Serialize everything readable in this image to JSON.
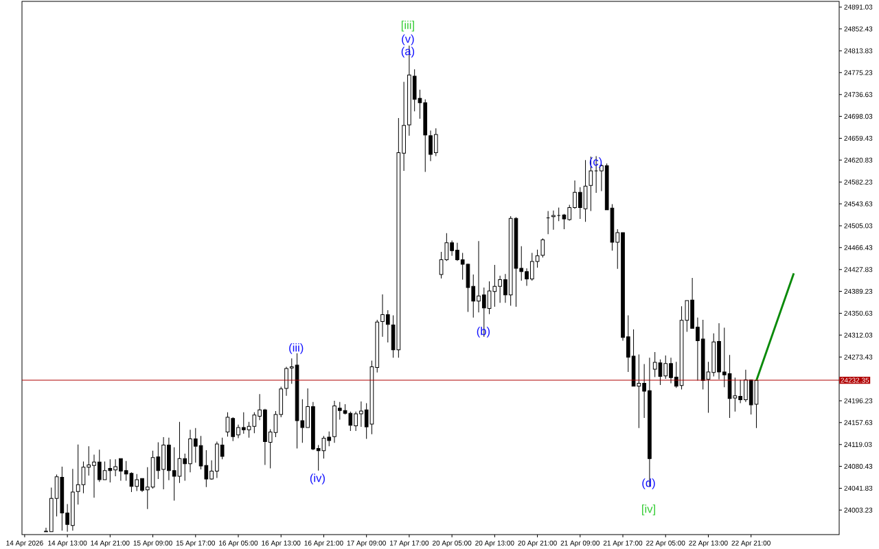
{
  "chart_data": {
    "type": "candlestick",
    "categories": [
      "14 Apr 2026",
      null,
      null,
      null,
      null,
      null,
      null,
      null,
      "14 Apr 13:00",
      null,
      null,
      null,
      null,
      null,
      null,
      null,
      "14 Apr 21:00",
      null,
      null,
      null,
      null,
      null,
      null,
      null,
      "15 Apr 09:00",
      null,
      null,
      null,
      null,
      null,
      null,
      null,
      "15 Apr 17:00",
      null,
      null,
      null,
      null,
      null,
      null,
      null,
      "16 Apr 05:00",
      null,
      null,
      null,
      null,
      null,
      null,
      null,
      "16 Apr 13:00",
      null,
      null,
      null,
      null,
      null,
      null,
      null,
      "16 Apr 21:00",
      null,
      null,
      null,
      null,
      null,
      null,
      null,
      "17 Apr 09:00",
      null,
      null,
      null,
      null,
      null,
      null,
      null,
      "17 Apr 17:00",
      null,
      null,
      null,
      null,
      null,
      null,
      null,
      "20 Apr 05:00",
      null,
      null,
      null,
      null,
      null,
      null,
      null,
      "20 Apr 13:00",
      null,
      null,
      null,
      null,
      null,
      null,
      null,
      "20 Apr 21:00",
      null,
      null,
      null,
      null,
      null,
      null,
      null,
      "21 Apr 09:00",
      null,
      null,
      null,
      null,
      null,
      null,
      null,
      "21 Apr 17:00",
      null,
      null,
      null,
      null,
      null,
      null,
      null,
      "22 Apr 05:00",
      null,
      null,
      null,
      null,
      null,
      null,
      null,
      "22 Apr 13:00",
      null,
      null,
      null,
      null,
      null,
      null,
      null,
      "22 Apr 21:00",
      null,
      null,
      null,
      null,
      null,
      null,
      null,
      null,
      null,
      null,
      null,
      null,
      null,
      null,
      null,
      null
    ],
    "ohlc": [
      null,
      null,
      null,
      null,
      [
        23965,
        23972,
        23965,
        23966
      ],
      [
        23965,
        24043,
        23965,
        24024
      ],
      [
        24024,
        24066,
        23992,
        24062
      ],
      [
        24061,
        24080,
        23967,
        23998
      ],
      [
        23998,
        24014,
        23965,
        23978
      ],
      [
        23976,
        24076,
        23967,
        24035
      ],
      [
        24036,
        24119,
        24013,
        24048
      ],
      [
        24048,
        24089,
        24033,
        24079
      ],
      [
        24079,
        24116,
        24064,
        24083
      ],
      [
        24082,
        24101,
        24025,
        24088
      ],
      [
        24088,
        24110,
        24053,
        24057
      ],
      [
        24057,
        24089,
        24057,
        24073
      ],
      [
        24077,
        24093,
        24052,
        24073
      ],
      [
        24074,
        24093,
        24063,
        24080
      ],
      [
        24094,
        24094,
        24055,
        24072
      ],
      [
        24073,
        24090,
        24055,
        24067
      ],
      [
        24068,
        24070,
        24035,
        24045
      ],
      [
        24045,
        24067,
        24037,
        24057
      ],
      [
        24059,
        24059,
        24035,
        24038
      ],
      [
        24039,
        24079,
        24005,
        24044
      ],
      [
        24044,
        24108,
        24041,
        24096
      ],
      [
        24097,
        24123,
        24058,
        24073
      ],
      [
        24075,
        24132,
        24040,
        24118
      ],
      [
        24118,
        24131,
        24056,
        24073
      ],
      [
        24073,
        24114,
        24020,
        24063
      ],
      [
        24063,
        24159,
        24051,
        24094
      ],
      [
        24094,
        24103,
        24055,
        24085
      ],
      [
        24085,
        24145,
        24070,
        24129
      ],
      [
        24129,
        24148,
        24087,
        24116
      ],
      [
        24117,
        24134,
        24075,
        24081
      ],
      [
        24082,
        24109,
        24044,
        24058
      ],
      [
        24058,
        24091,
        24057,
        24072
      ],
      [
        24072,
        24124,
        24060,
        24120
      ],
      [
        24118,
        24131,
        24093,
        24098
      ],
      [
        24141,
        24176,
        24133,
        24167
      ],
      [
        24165,
        24167,
        24125,
        24133
      ],
      [
        24136,
        24154,
        24130,
        24149
      ],
      [
        24149,
        24176,
        24138,
        24145
      ],
      [
        24145,
        24159,
        24131,
        24151
      ],
      [
        24151,
        24176,
        24139,
        24171
      ],
      [
        24169,
        24208,
        24162,
        24180
      ],
      [
        24180,
        24182,
        24083,
        24124
      ],
      [
        24123,
        24146,
        24077,
        24141
      ],
      [
        24140,
        24178,
        24132,
        24172
      ],
      [
        24172,
        24221,
        24167,
        24217
      ],
      [
        24218,
        24256,
        24205,
        24253
      ],
      [
        24254,
        24271,
        24226,
        24256
      ],
      [
        24259,
        24280,
        24112,
        24161
      ],
      [
        24161,
        24199,
        24122,
        24149
      ],
      [
        24149,
        24218,
        24149,
        24186
      ],
      [
        24186,
        24194,
        24109,
        24111
      ],
      [
        24112,
        24118,
        24073,
        24108
      ],
      [
        24108,
        24134,
        24094,
        24130
      ],
      [
        24132,
        24142,
        24116,
        24126
      ],
      [
        24133,
        24196,
        24122,
        24187
      ],
      [
        24183,
        24194,
        24163,
        24179
      ],
      [
        24179,
        24190,
        24172,
        24174
      ],
      [
        24174,
        24177,
        24143,
        24153
      ],
      [
        24152,
        24177,
        24143,
        24173
      ],
      [
        24173,
        24195,
        24150,
        24178
      ],
      [
        24180,
        24192,
        24129,
        24150
      ],
      [
        24155,
        24267,
        24137,
        24256
      ],
      [
        24255,
        24339,
        24246,
        24335
      ],
      [
        24336,
        24384,
        24309,
        24348
      ],
      [
        24348,
        24356,
        24299,
        24331
      ],
      [
        24330,
        24347,
        24272,
        24286
      ],
      [
        24286,
        24695,
        24272,
        24634
      ],
      [
        24633,
        24759,
        24602,
        24682
      ],
      [
        24683,
        24823,
        24664,
        24771
      ],
      [
        24769,
        24781,
        24707,
        24728
      ],
      [
        24730,
        24745,
        24694,
        24722
      ],
      [
        24722,
        24728,
        24600,
        24665
      ],
      [
        24664,
        24673,
        24619,
        24631
      ],
      [
        24634,
        24677,
        24628,
        24666
      ],
      [
        24419,
        24459,
        24412,
        24445
      ],
      [
        24445,
        24492,
        24443,
        24475
      ],
      [
        24475,
        24479,
        24452,
        24461
      ],
      [
        24462,
        24475,
        24443,
        24445
      ],
      [
        24445,
        24457,
        24410,
        24437
      ],
      [
        24437,
        24438,
        24353,
        24396
      ],
      [
        24398,
        24419,
        24343,
        24372
      ],
      [
        24372,
        24478,
        24352,
        24381
      ],
      [
        24383,
        24396,
        24309,
        24360
      ],
      [
        24359,
        24407,
        24349,
        24390
      ],
      [
        24389,
        24436,
        24362,
        24398
      ],
      [
        24398,
        24417,
        24369,
        24410
      ],
      [
        24410,
        24420,
        24369,
        24383
      ],
      [
        24383,
        24522,
        24364,
        24518
      ],
      [
        24518,
        24520,
        24362,
        24430
      ],
      [
        24430,
        24469,
        24408,
        24424
      ],
      [
        24424,
        24430,
        24399,
        24411
      ],
      [
        24411,
        24457,
        24408,
        24442
      ],
      [
        24442,
        24463,
        24431,
        24452
      ],
      [
        24453,
        24483,
        24449,
        24480
      ],
      [
        24519,
        24531,
        24490,
        24519
      ],
      [
        24521,
        24532,
        24498,
        24523
      ],
      [
        24523,
        24537,
        24513,
        24523
      ],
      [
        24524,
        24526,
        24499,
        24517
      ],
      [
        24516,
        24542,
        24514,
        24537
      ],
      [
        24537,
        24585,
        24535,
        24564
      ],
      [
        24564,
        24573,
        24517,
        24537
      ],
      [
        24535,
        24621,
        24512,
        24575
      ],
      [
        24576,
        24627,
        24531,
        24602
      ],
      [
        24602,
        24628,
        24563,
        24602
      ],
      [
        24602,
        24614,
        24566,
        24611
      ],
      [
        24611,
        24615,
        24533,
        24533
      ],
      [
        24536,
        24543,
        24461,
        24476
      ],
      [
        24476,
        24499,
        24429,
        24493
      ],
      [
        24493,
        24493,
        24302,
        24308
      ],
      [
        24309,
        24347,
        24247,
        24273
      ],
      [
        24275,
        24322,
        24222,
        24222
      ],
      [
        24222,
        24278,
        24148,
        24227
      ],
      [
        24227,
        24261,
        24166,
        24213
      ],
      [
        24214,
        24272,
        24044,
        24094
      ],
      [
        24252,
        24282,
        24238,
        24264
      ],
      [
        24263,
        24269,
        24224,
        24239
      ],
      [
        24240,
        24276,
        24235,
        24262
      ],
      [
        24262,
        24272,
        24227,
        24237
      ],
      [
        24238,
        24265,
        24219,
        24222
      ],
      [
        24223,
        24363,
        24216,
        24338
      ],
      [
        24338,
        24373,
        24318,
        24373
      ],
      [
        24374,
        24413,
        24324,
        24324
      ],
      [
        24326,
        24343,
        24232,
        24302
      ],
      [
        24305,
        24339,
        24216,
        24232
      ],
      [
        24234,
        24265,
        24175,
        24247
      ],
      [
        24246,
        24315,
        24239,
        24300
      ],
      [
        24301,
        24333,
        24234,
        24247
      ],
      [
        24247,
        24325,
        24220,
        24242
      ],
      [
        24244,
        24277,
        24166,
        24200
      ],
      [
        24201,
        24237,
        24177,
        24205
      ],
      [
        24204,
        24233,
        24192,
        24198
      ],
      [
        24198,
        24251,
        24194,
        24233
      ],
      [
        24233,
        24233,
        24172,
        24189
      ],
      [
        24190,
        24232,
        24148,
        24232
      ],
      null,
      null,
      null,
      null,
      null,
      null,
      null,
      null,
      null,
      null,
      null,
      null,
      null,
      null,
      null
    ],
    "series": [
      {
        "type": "line",
        "color": "#0a8a0a",
        "values": [
          null,
          null,
          null,
          null,
          null,
          null,
          null,
          null,
          null,
          null,
          null,
          null,
          null,
          null,
          null,
          null,
          null,
          null,
          null,
          null,
          null,
          null,
          null,
          null,
          null,
          null,
          null,
          null,
          null,
          null,
          null,
          null,
          null,
          null,
          null,
          null,
          null,
          null,
          null,
          null,
          null,
          null,
          null,
          null,
          null,
          null,
          null,
          null,
          null,
          null,
          null,
          null,
          null,
          null,
          null,
          null,
          null,
          null,
          null,
          null,
          null,
          null,
          null,
          null,
          null,
          null,
          null,
          null,
          null,
          null,
          null,
          null,
          null,
          null,
          null,
          null,
          null,
          null,
          null,
          null,
          null,
          null,
          null,
          null,
          null,
          null,
          null,
          null,
          null,
          null,
          null,
          null,
          null,
          null,
          null,
          null,
          null,
          null,
          null,
          null,
          null,
          null,
          null,
          null,
          null,
          null,
          null,
          null,
          null,
          null,
          null,
          null,
          null,
          null,
          null,
          null,
          null,
          null,
          null,
          null,
          null,
          null,
          null,
          null,
          null,
          null,
          null,
          null,
          null,
          null,
          null,
          null,
          null,
          null,
          null,
          null,
          null,
          24232,
          null,
          null,
          null,
          null,
          null,
          null,
          24421,
          null,
          null,
          null,
          null,
          null,
          null,
          null,
          null
        ]
      }
    ],
    "ylim": [
      23960,
      24901
    ],
    "yticks": [
      24891.03,
      24852.43,
      24813.83,
      24775.23,
      24736.63,
      24698.03,
      24659.43,
      24620.83,
      24582.23,
      24543.63,
      24505.03,
      24466.43,
      24427.83,
      24389.23,
      24350.63,
      24312.03,
      24273.43,
      24196.23,
      24157.63,
      24119.03,
      24080.43,
      24041.83,
      24003.23
    ],
    "ref_lines": [
      {
        "axis": "y",
        "value": 24232.35,
        "label": "24232.35",
        "color": "#b00000"
      }
    ],
    "annotations": [
      "[iii]",
      "(v)",
      "(a)",
      "(iii)",
      "(iv)",
      "(b)",
      "(c)",
      "(d)",
      "[iv]"
    ]
  }
}
